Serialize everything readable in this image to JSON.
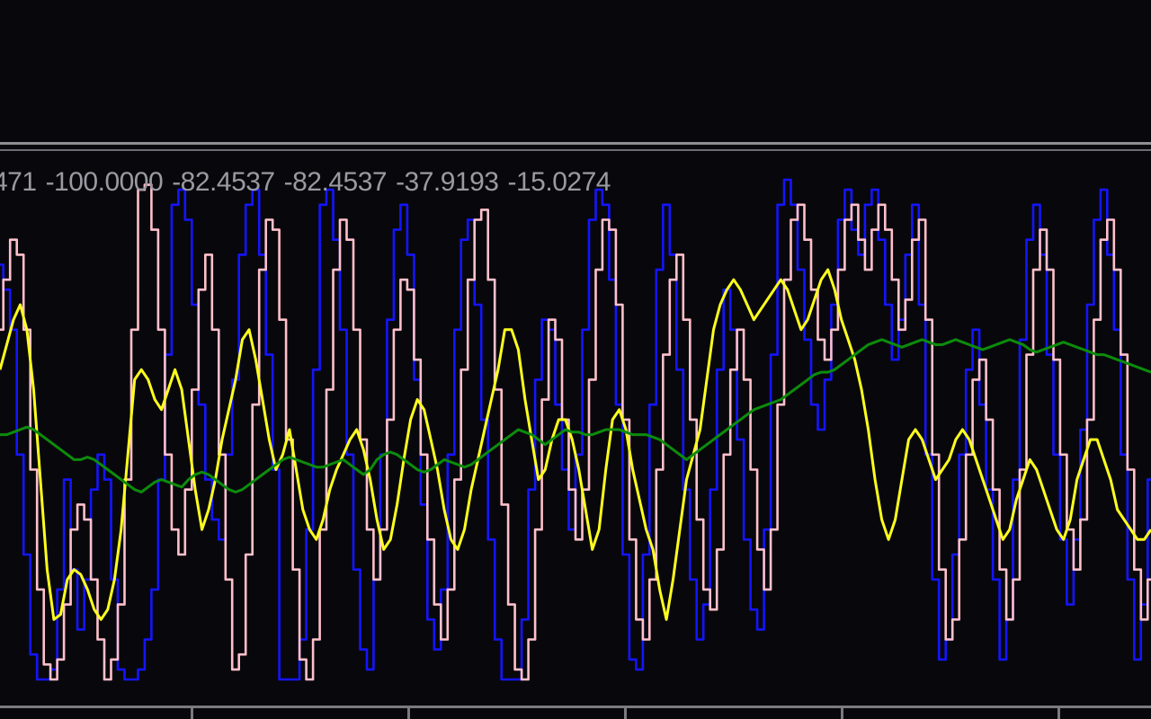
{
  "readout": {
    "values": [
      "471",
      "-100.0000",
      "-82.4537",
      "-82.4537",
      "-37.9193",
      "-15.0274"
    ]
  },
  "colors": {
    "background": "#08080c",
    "separator": "#8f8f95",
    "blue": "#1414ff",
    "pink": "#ffc0cb",
    "yellow": "#ffff1e",
    "green": "#0c8c0c",
    "readout_text": "#9a9aa2"
  },
  "chart_data": {
    "type": "line",
    "ylim": [
      -100,
      0
    ],
    "grid": false,
    "legend": "none",
    "x_count": 172,
    "series": [
      {
        "color": "#1414ff",
        "style": "step",
        "values": [
          -17,
          -22,
          -30,
          -55,
          -75,
          -95,
          -100,
          -100,
          -98,
          -82,
          -60,
          -78,
          -90,
          -80,
          -62,
          -55,
          -60,
          -80,
          -98,
          -100,
          -100,
          -98,
          -92,
          -82,
          -60,
          -35,
          -5,
          -2,
          -8,
          -25,
          -45,
          -60,
          -68,
          -72,
          -55,
          -40,
          -15,
          -5,
          -2,
          -15,
          -35,
          -58,
          -100,
          -100,
          -100,
          -92,
          -70,
          -38,
          -5,
          -2,
          -12,
          -30,
          -55,
          -78,
          -94,
          -98,
          -80,
          -55,
          -28,
          -10,
          -5,
          -15,
          -40,
          -65,
          -88,
          -94,
          -82,
          -55,
          -30,
          -12,
          -8,
          -25,
          -48,
          -72,
          -92,
          -100,
          -100,
          -100,
          -88,
          -62,
          -40,
          -28,
          -30,
          -45,
          -58,
          -70,
          -55,
          -30,
          -8,
          -2,
          -5,
          -20,
          -45,
          -75,
          -96,
          -98,
          -75,
          -45,
          -18,
          -5,
          -15,
          -38,
          -62,
          -80,
          -92,
          -85,
          -62,
          -38,
          -22,
          -30,
          -52,
          -72,
          -86,
          -90,
          -70,
          -35,
          -5,
          0,
          -5,
          -18,
          -32,
          -45,
          -50,
          -40,
          -25,
          -8,
          -2,
          -10,
          -15,
          -5,
          -2,
          -12,
          -25,
          -36,
          -28,
          -15,
          -5,
          -25,
          -55,
          -80,
          -96,
          -92,
          -75,
          -55,
          -38,
          -30,
          -45,
          -62,
          -80,
          -96,
          -88,
          -60,
          -32,
          -12,
          -5,
          -15,
          -35,
          -55,
          -72,
          -85,
          -72,
          -50,
          -25,
          -8,
          -2,
          -15,
          -30,
          -55,
          -80,
          -96,
          -85,
          -60,
          -40,
          -30
        ]
      },
      {
        "color": "#ffc0cb",
        "style": "step",
        "values": [
          -30,
          -20,
          -12,
          -15,
          -30,
          -58,
          -82,
          -97,
          -100,
          -96,
          -85,
          -70,
          -65,
          -68,
          -80,
          -92,
          -100,
          -96,
          -85,
          -60,
          -30,
          -2,
          -1,
          -10,
          -30,
          -55,
          -70,
          -75,
          -62,
          -42,
          -22,
          -15,
          -30,
          -55,
          -80,
          -98,
          -95,
          -75,
          -45,
          -18,
          -8,
          -10,
          -28,
          -52,
          -78,
          -96,
          -100,
          -92,
          -70,
          -42,
          -18,
          -8,
          -12,
          -30,
          -52,
          -70,
          -80,
          -70,
          -48,
          -30,
          -20,
          -22,
          -36,
          -55,
          -72,
          -85,
          -92,
          -82,
          -60,
          -38,
          -20,
          -8,
          -6,
          -20,
          -42,
          -65,
          -85,
          -98,
          -100,
          -92,
          -70,
          -44,
          -28,
          -32,
          -48,
          -62,
          -72,
          -62,
          -40,
          -18,
          -8,
          -10,
          -25,
          -48,
          -72,
          -88,
          -92,
          -80,
          -58,
          -35,
          -20,
          -15,
          -28,
          -48,
          -68,
          -82,
          -86,
          -74,
          -55,
          -38,
          -30,
          -40,
          -58,
          -74,
          -82,
          -70,
          -45,
          -20,
          -8,
          -5,
          -12,
          -22,
          -32,
          -36,
          -30,
          -18,
          -8,
          -5,
          -12,
          -18,
          -10,
          -5,
          -10,
          -20,
          -30,
          -24,
          -12,
          -8,
          -28,
          -55,
          -78,
          -92,
          -88,
          -72,
          -55,
          -40,
          -36,
          -48,
          -62,
          -78,
          -88,
          -80,
          -58,
          -35,
          -18,
          -10,
          -18,
          -36,
          -55,
          -70,
          -78,
          -68,
          -48,
          -28,
          -12,
          -8,
          -18,
          -35,
          -58,
          -78,
          -88,
          -80,
          -62,
          -48
        ]
      },
      {
        "color": "#ffff1e",
        "style": "line",
        "values": [
          -38,
          -33,
          -28,
          -25,
          -30,
          -42,
          -60,
          -78,
          -88,
          -87,
          -80,
          -78,
          -79,
          -82,
          -86,
          -88,
          -86,
          -80,
          -70,
          -55,
          -40,
          -38,
          -40,
          -44,
          -46,
          -42,
          -38,
          -42,
          -52,
          -62,
          -70,
          -66,
          -60,
          -52,
          -46,
          -40,
          -32,
          -30,
          -36,
          -44,
          -52,
          -58,
          -55,
          -50,
          -58,
          -66,
          -70,
          -72,
          -68,
          -62,
          -58,
          -55,
          -52,
          -50,
          -54,
          -60,
          -68,
          -74,
          -72,
          -65,
          -56,
          -48,
          -44,
          -46,
          -52,
          -58,
          -66,
          -72,
          -74,
          -70,
          -62,
          -56,
          -50,
          -44,
          -38,
          -30,
          -30,
          -34,
          -44,
          -52,
          -60,
          -58,
          -52,
          -48,
          -48,
          -52,
          -58,
          -66,
          -74,
          -70,
          -58,
          -48,
          -46,
          -50,
          -58,
          -64,
          -70,
          -74,
          -82,
          -88,
          -80,
          -70,
          -60,
          -55,
          -50,
          -40,
          -30,
          -25,
          -22,
          -20,
          -22,
          -25,
          -28,
          -26,
          -24,
          -22,
          -20,
          -22,
          -26,
          -30,
          -28,
          -24,
          -20,
          -18,
          -22,
          -28,
          -32,
          -36,
          -42,
          -50,
          -60,
          -68,
          -72,
          -68,
          -60,
          -52,
          -50,
          -52,
          -56,
          -60,
          -58,
          -56,
          -52,
          -50,
          -52,
          -56,
          -60,
          -64,
          -68,
          -72,
          -70,
          -64,
          -60,
          -56,
          -58,
          -62,
          -66,
          -70,
          -72,
          -68,
          -60,
          -56,
          -52,
          -52,
          -56,
          -60,
          -66,
          -68,
          -70,
          -72,
          -72,
          -70
        ]
      },
      {
        "color": "#0c8c0c",
        "style": "line",
        "values": [
          -51,
          -51,
          -50.5,
          -50,
          -49.5,
          -50,
          -51,
          -52,
          -53,
          -54,
          -55,
          -56,
          -56,
          -55.5,
          -56,
          -57,
          -58,
          -59,
          -60,
          -61,
          -62,
          -62.5,
          -61.5,
          -60.5,
          -60,
          -60.5,
          -61,
          -61.5,
          -60,
          -59,
          -58.5,
          -59,
          -60,
          -61,
          -62,
          -62.5,
          -62,
          -61,
          -60,
          -59,
          -58,
          -57,
          -56,
          -55.5,
          -56,
          -56.5,
          -57,
          -57.5,
          -57.5,
          -57,
          -56.5,
          -56,
          -57,
          -58,
          -59,
          -58,
          -56,
          -55,
          -54.5,
          -55,
          -56,
          -57,
          -58,
          -58.5,
          -58,
          -57,
          -56,
          -56.5,
          -57,
          -57.5,
          -57,
          -56,
          -55,
          -54,
          -53,
          -52,
          -51,
          -50,
          -50.5,
          -51,
          -52,
          -53,
          -52,
          -51,
          -50,
          -50.5,
          -50.5,
          -51,
          -51,
          -50.5,
          -50,
          -50,
          -50,
          -50.5,
          -51,
          -51,
          -51,
          -51.5,
          -52,
          -53,
          -54,
          -55,
          -56,
          -55,
          -54,
          -53,
          -52,
          -51,
          -50,
          -49,
          -48,
          -47,
          -46,
          -45.5,
          -45,
          -44.5,
          -44,
          -43,
          -42,
          -41,
          -40,
          -39,
          -38.5,
          -38.5,
          -38,
          -37,
          -36,
          -35,
          -34,
          -33,
          -32.5,
          -32,
          -32.5,
          -33,
          -33.5,
          -33,
          -32.5,
          -32,
          -32.5,
          -33,
          -33,
          -32.5,
          -32,
          -32.5,
          -33,
          -33.5,
          -34,
          -33.5,
          -33,
          -32.5,
          -32,
          -32.5,
          -33,
          -34,
          -34.5,
          -34,
          -33.5,
          -33,
          -32.5,
          -33,
          -33.5,
          -34,
          -34.5,
          -35,
          -35,
          -35.5,
          -36,
          -36.5,
          -37,
          -37.5,
          -38,
          -38.5
        ]
      }
    ]
  }
}
